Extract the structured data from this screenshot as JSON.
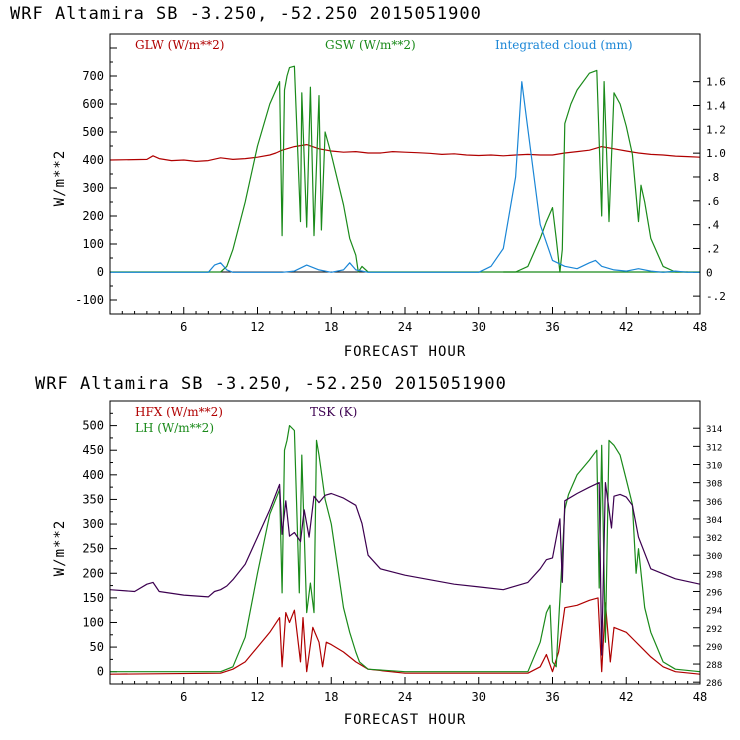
{
  "colors": {
    "red": "#b00000",
    "green": "#1a8a1a",
    "blue": "#1a86d6",
    "purple": "#3c0050"
  },
  "chart_data": [
    {
      "type": "line",
      "title": "WRF  Altamira  SB  -3.250, -52.250  2015051900",
      "xlabel": "FORECAST HOUR",
      "ylabel": "W/m**2",
      "xlim": [
        0,
        48
      ],
      "ylim": [
        -150,
        850
      ],
      "x_ticks": [
        6,
        12,
        18,
        24,
        30,
        36,
        42,
        48
      ],
      "y_ticks": [
        -100,
        0,
        100,
        200,
        300,
        400,
        500,
        600,
        700
      ],
      "right_axis": {
        "ylim": [
          -0.35,
          2.0
        ],
        "ticks": [
          -0.2,
          0,
          0.2,
          0.4,
          0.6,
          0.8,
          1.0,
          1.2,
          1.4,
          1.6
        ],
        "tick_labels": [
          "-.2",
          "0",
          ".2",
          ".4",
          ".6",
          ".8",
          "1.0",
          "1.2",
          "1.4",
          "1.6"
        ]
      },
      "series": [
        {
          "name": "GLW (W/m**2)",
          "color_key": "red",
          "axis": "left",
          "x": [
            0,
            3,
            3.5,
            4,
            5,
            6,
            7,
            8,
            9,
            10,
            11,
            12,
            13,
            13.5,
            14,
            15,
            16,
            17,
            18,
            19,
            20,
            21,
            22,
            23,
            24,
            25,
            26,
            27,
            28,
            29,
            30,
            31,
            32,
            33,
            34,
            35,
            36,
            37,
            38,
            39,
            40,
            41,
            42,
            43,
            44,
            45,
            46,
            47,
            48
          ],
          "values": [
            400,
            402,
            415,
            405,
            398,
            400,
            395,
            398,
            408,
            402,
            405,
            410,
            418,
            425,
            435,
            448,
            455,
            440,
            432,
            428,
            430,
            425,
            425,
            430,
            428,
            426,
            424,
            420,
            422,
            418,
            416,
            418,
            415,
            418,
            420,
            418,
            418,
            425,
            430,
            435,
            448,
            440,
            432,
            425,
            420,
            418,
            414,
            412,
            410
          ]
        },
        {
          "name": "GSW (W/m**2)",
          "color_key": "green",
          "axis": "left",
          "x": [
            0,
            9,
            9.5,
            10,
            11,
            12,
            13,
            13.8,
            14,
            14.2,
            14.4,
            14.6,
            15,
            15.5,
            15.6,
            16,
            16.3,
            16.6,
            17,
            17.2,
            17.5,
            18,
            19,
            19.5,
            20,
            20.2,
            20.5,
            21,
            48
          ],
          "x2": [
            32,
            33,
            34,
            35,
            35.5,
            36,
            36.3,
            36.6,
            36.8,
            37,
            37.5,
            38,
            39,
            39.6,
            40,
            40.2,
            40.6,
            41,
            41.5,
            42,
            42.5,
            43,
            43.2,
            43.5,
            44,
            45,
            46,
            47
          ],
          "values": [
            0,
            0,
            20,
            80,
            250,
            450,
            600,
            680,
            130,
            650,
            700,
            730,
            735,
            180,
            640,
            160,
            660,
            130,
            630,
            150,
            500,
            420,
            240,
            120,
            60,
            0,
            20,
            0,
            0
          ],
          "values2": [
            0,
            0,
            20,
            120,
            180,
            230,
            120,
            0,
            80,
            530,
            600,
            650,
            710,
            720,
            200,
            680,
            180,
            640,
            600,
            520,
            420,
            180,
            310,
            250,
            120,
            20,
            0,
            0
          ]
        },
        {
          "name": "Integrated cloud (mm)",
          "color_key": "blue",
          "axis": "right",
          "x": [
            0,
            8,
            8.5,
            9,
            9.5,
            10,
            12,
            14,
            15,
            16,
            17,
            18,
            19,
            19.5,
            20,
            21,
            24,
            28,
            30,
            31,
            32,
            33,
            33.5,
            34,
            35,
            36,
            37,
            38,
            39,
            39.5,
            40,
            41,
            42,
            43,
            44,
            45,
            46,
            47,
            48
          ],
          "values": [
            0,
            0,
            0.06,
            0.08,
            0.02,
            0,
            0,
            0,
            0.01,
            0.06,
            0.02,
            0,
            0.02,
            0.08,
            0.02,
            0,
            0,
            0,
            0,
            0.05,
            0.2,
            0.8,
            1.6,
            1.2,
            0.4,
            0.1,
            0.05,
            0.03,
            0.08,
            0.1,
            0.05,
            0.02,
            0.01,
            0.03,
            0.01,
            0,
            0.01,
            0,
            0
          ]
        }
      ]
    },
    {
      "type": "line",
      "title": "WRF  Altamira  SB  -3.250, -52.250  2015051900",
      "xlabel": "FORECAST HOUR",
      "ylabel": "W/m**2",
      "xlim": [
        0,
        48
      ],
      "ylim": [
        -25,
        550
      ],
      "x_ticks": [
        6,
        12,
        18,
        24,
        30,
        36,
        42,
        48
      ],
      "y_ticks": [
        0,
        50,
        100,
        150,
        200,
        250,
        300,
        350,
        400,
        450,
        500
      ],
      "right_axis": {
        "ylim": [
          285.8,
          317
        ],
        "ticks": [
          286,
          288,
          290,
          292,
          294,
          296,
          298,
          300,
          302,
          304,
          306,
          308,
          310,
          312,
          314
        ],
        "tick_labels": [
          "286",
          "288",
          "290",
          "292",
          "294",
          "296",
          "298",
          "300",
          "302",
          "304",
          "306",
          "308",
          "310",
          "312",
          "314"
        ]
      },
      "series": [
        {
          "name": "HFX (W/m**2)",
          "color_key": "red",
          "axis": "left",
          "x": [
            0,
            9,
            10,
            11,
            12,
            13,
            13.8,
            14,
            14.3,
            14.6,
            15,
            15.5,
            15.7,
            16,
            16.5,
            17,
            17.3,
            17.6,
            18,
            19,
            20,
            21,
            24,
            30,
            34,
            35,
            35.5,
            36,
            36.5,
            37,
            38,
            39,
            39.7,
            40,
            40.3,
            40.7,
            41,
            42,
            43,
            44,
            45,
            46,
            48
          ],
          "values": [
            -5,
            -3,
            5,
            20,
            50,
            80,
            110,
            10,
            120,
            100,
            125,
            20,
            110,
            0,
            90,
            60,
            10,
            60,
            55,
            40,
            20,
            5,
            -3,
            -3,
            -3,
            10,
            35,
            0,
            40,
            130,
            135,
            145,
            150,
            0,
            140,
            20,
            90,
            80,
            55,
            30,
            10,
            0,
            -5
          ]
        },
        {
          "name": "LH (W/m**2)",
          "color_key": "green",
          "axis": "left",
          "x": [
            0,
            9,
            10,
            11,
            12,
            13,
            13.8,
            14,
            14.2,
            14.4,
            14.6,
            15,
            15.4,
            15.6,
            16,
            16.3,
            16.6,
            16.8,
            17,
            17.5,
            18,
            19,
            19.5,
            20,
            20.3,
            21,
            24,
            30,
            34,
            35,
            35.5,
            35.8,
            36,
            36.3,
            37,
            37.3,
            38,
            39,
            39.6,
            39.8,
            40,
            40.3,
            40.6,
            41,
            41.5,
            42,
            42.5,
            42.8,
            43,
            43.5,
            44,
            45,
            46,
            48
          ],
          "values": [
            0,
            0,
            10,
            70,
            200,
            320,
            370,
            160,
            450,
            470,
            500,
            490,
            160,
            440,
            120,
            180,
            120,
            470,
            440,
            350,
            300,
            130,
            80,
            40,
            20,
            5,
            0,
            0,
            0,
            60,
            120,
            135,
            20,
            10,
            330,
            360,
            400,
            430,
            450,
            170,
            460,
            60,
            470,
            460,
            440,
            390,
            340,
            200,
            250,
            130,
            80,
            20,
            5,
            0
          ]
        },
        {
          "name": "TSK (K)",
          "color_key": "purple",
          "axis": "right",
          "x": [
            0,
            2,
            3,
            3.5,
            4,
            6,
            8,
            8.5,
            9,
            9.5,
            10,
            11,
            12,
            13,
            13.8,
            14,
            14.3,
            14.6,
            15,
            15.5,
            15.8,
            16.2,
            16.6,
            17,
            17.5,
            18,
            19,
            20,
            20.5,
            21,
            22,
            24,
            26,
            28,
            30,
            32,
            34,
            35,
            35.5,
            36,
            36.6,
            36.8,
            37,
            38,
            39,
            39.8,
            40,
            40.3,
            40.8,
            41,
            41.5,
            42,
            42.5,
            43,
            44,
            46,
            48
          ],
          "values": [
            296.2,
            296,
            296.8,
            297,
            296,
            295.6,
            295.4,
            296,
            296.2,
            296.6,
            297.3,
            299,
            302,
            305,
            307.8,
            302.3,
            306,
            302.1,
            302.5,
            301.5,
            305,
            302,
            306.5,
            305.8,
            306.6,
            306.8,
            306.3,
            305.5,
            303.5,
            300,
            298.5,
            297.8,
            297.3,
            296.8,
            296.5,
            296.2,
            297,
            298.5,
            299.5,
            299.7,
            304,
            297,
            306,
            306.8,
            307.5,
            308,
            289,
            308,
            303,
            306.5,
            306.7,
            306.4,
            305.5,
            302,
            298.5,
            297.4,
            296.8
          ]
        }
      ]
    }
  ]
}
